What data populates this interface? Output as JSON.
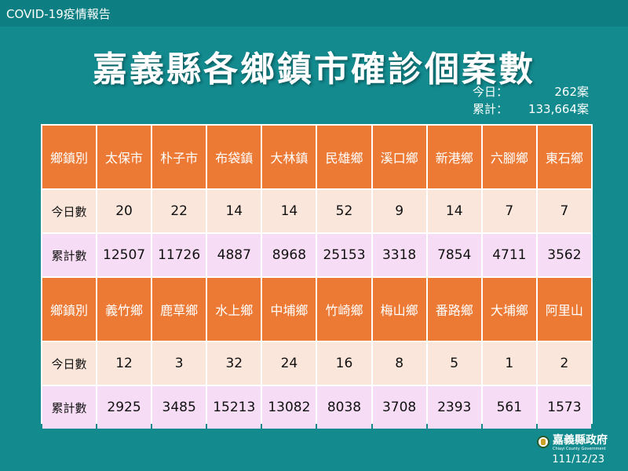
{
  "header": {
    "label": "COVID-19疫情報告"
  },
  "title": "嘉義縣各鄉鎮市確診個案數",
  "summary": {
    "today_label": "今日：",
    "today_value": "262案",
    "total_label": "累計：",
    "total_value": "133,664案"
  },
  "colors": {
    "background": "#128a8e",
    "header_cell": "#ec7a35",
    "today_cell": "#fae6db",
    "cumulative_cell": "#f6dcf4"
  },
  "table": {
    "blocks": [
      {
        "header_label": "鄉鎮別",
        "towns": [
          "太保市",
          "朴子市",
          "布袋鎮",
          "大林鎮",
          "民雄鄉",
          "溪口鄉",
          "新港鄉",
          "六腳鄉",
          "東石鄉"
        ],
        "today_label": "今日數",
        "today": [
          "20",
          "22",
          "14",
          "14",
          "52",
          "9",
          "14",
          "7",
          "7"
        ],
        "cumulative_label": "累計數",
        "cumulative": [
          "12507",
          "11726",
          "4887",
          "8968",
          "25153",
          "3318",
          "7854",
          "4711",
          "3562"
        ]
      },
      {
        "header_label": "鄉鎮別",
        "towns": [
          "義竹鄉",
          "鹿草鄉",
          "水上鄉",
          "中埔鄉",
          "竹崎鄉",
          "梅山鄉",
          "番路鄉",
          "大埔鄉",
          "阿里山"
        ],
        "today_label": "今日數",
        "today": [
          "12",
          "3",
          "32",
          "24",
          "16",
          "8",
          "5",
          "1",
          "2"
        ],
        "cumulative_label": "累計數",
        "cumulative": [
          "2925",
          "3485",
          "15213",
          "13082",
          "8038",
          "3708",
          "2393",
          "561",
          "1573"
        ]
      }
    ]
  },
  "footer": {
    "logo_name": "嘉義縣政府",
    "logo_sub": "Chiayi County Government",
    "logo_icon": "county-seal-icon",
    "date": "111/12/23"
  }
}
